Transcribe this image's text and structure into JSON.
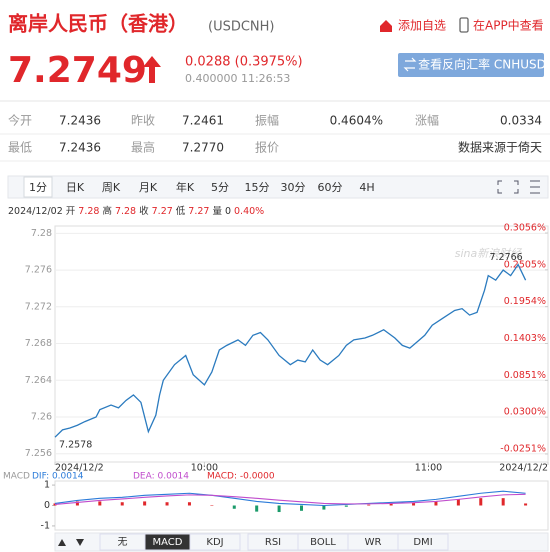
{
  "header": {
    "title": "离岸人民币（香港）",
    "code": "(USDCNH)",
    "add_watch": "添加自选",
    "app_view": "在APP中查看"
  },
  "quote": {
    "price": "7.2749",
    "change": "0.0288 (0.3975%)",
    "detail": "0.400000 11:26:53",
    "button": "查看反向汇率 CNHUSD"
  },
  "stats": [
    [
      {
        "label": "今开",
        "value": "7.2436"
      },
      {
        "label": "昨收",
        "value": "7.2461"
      },
      {
        "label": "振幅",
        "value": "0.4604%"
      },
      {
        "label": "涨幅",
        "value": "0.0334"
      }
    ],
    [
      {
        "label": "最低",
        "value": "7.2436"
      },
      {
        "label": "最高",
        "value": "7.2770"
      },
      {
        "label": "报价"
      },
      {
        "value": "数据来源于倚天"
      }
    ]
  ],
  "tabs": {
    "items": [
      "1分",
      "日K",
      "周K",
      "月K",
      "年K",
      "5分",
      "15分",
      "30分",
      "60分",
      "4H"
    ],
    "selected": 0
  },
  "info_line": [
    "2024/12/02",
    "开",
    "7.28",
    "高",
    "7.28",
    "收",
    "7.27",
    "低",
    "7.27",
    "量",
    "0",
    "0.40%"
  ],
  "indicators": {
    "items": [
      "无",
      "MACD",
      "KDJ",
      "RSI",
      "BOLL",
      "WR",
      "DMI"
    ],
    "selected": 1
  },
  "chart_data": [
    {
      "type": "line",
      "color": "#2b7bbf",
      "watermark": "sina新浪财经",
      "x": [
        0,
        2,
        4,
        6,
        8,
        11,
        12,
        15,
        17,
        19,
        21,
        23,
        25,
        27,
        28,
        29,
        32,
        35,
        37,
        40,
        42,
        44,
        46,
        49,
        51,
        53,
        55,
        57,
        60,
        63,
        65,
        67,
        69,
        71,
        73,
        76,
        78,
        80,
        83,
        85,
        88,
        91,
        93,
        95,
        97,
        99,
        101,
        104,
        107,
        109,
        111,
        113,
        115,
        116,
        118,
        120,
        122,
        124,
        126
      ],
      "values": [
        7.2578,
        7.2586,
        7.2588,
        7.2591,
        7.2595,
        7.26,
        7.2608,
        7.2613,
        7.261,
        7.2618,
        7.2624,
        7.2616,
        7.2584,
        7.2602,
        7.2624,
        7.264,
        7.2657,
        7.2667,
        7.2646,
        7.2635,
        7.2649,
        7.2673,
        7.2678,
        7.2684,
        7.2678,
        7.2689,
        7.2692,
        7.2684,
        7.2667,
        7.2657,
        7.2662,
        7.266,
        7.2673,
        7.2662,
        7.2657,
        7.2667,
        7.2678,
        7.2684,
        7.2686,
        7.2689,
        7.2695,
        7.2686,
        7.2678,
        7.2675,
        7.2682,
        7.2689,
        7.27,
        7.2708,
        7.2716,
        7.2718,
        7.2711,
        7.2714,
        7.2738,
        7.2754,
        7.2749,
        7.276,
        7.2754,
        7.2766,
        7.2749
      ],
      "annotations": [
        "7.2766",
        "7.2578"
      ],
      "xlim": [
        0,
        132
      ],
      "xticks": [
        {
          "value": 0,
          "label": "2024/12/2"
        },
        {
          "value": 40,
          "label": "10:00"
        },
        {
          "value": 100,
          "label": "11:00"
        },
        {
          "value": 132,
          "label": "2024/12/2"
        }
      ],
      "ylim": [
        7.2551,
        7.2808
      ],
      "yticks": [
        7.28,
        7.276,
        7.272,
        7.268,
        7.264,
        7.26,
        7.256
      ],
      "y2lim": [
        -0.0371,
        0.3161
      ],
      "y2ticks": [
        {
          "value": 0.3056,
          "label": "0.3056%"
        },
        {
          "value": 0.2505,
          "label": "0.2505%"
        },
        {
          "value": 0.1954,
          "label": "0.1954%"
        },
        {
          "value": 0.1403,
          "label": "0.1403%"
        },
        {
          "value": 0.0851,
          "label": "0.0851%"
        },
        {
          "value": 0.03,
          "label": "0.0300%"
        },
        {
          "value": -0.0251,
          "label": "-0.0251%"
        }
      ],
      "y2_color": "#e0272b",
      "grid": true
    },
    {
      "type": "macd",
      "label": "MACD",
      "x": [
        0,
        6,
        12,
        18,
        24,
        30,
        36,
        42,
        48,
        54,
        60,
        66,
        72,
        78,
        84,
        90,
        96,
        102,
        108,
        114,
        120,
        126
      ],
      "series": [
        {
          "name": "DIF: 0.0014",
          "color": "#2b7bd9",
          "values": [
            0.1,
            0.25,
            0.35,
            0.4,
            0.5,
            0.55,
            0.6,
            0.5,
            0.35,
            0.2,
            0.1,
            0.05,
            0.0,
            0.05,
            0.1,
            0.15,
            0.2,
            0.3,
            0.45,
            0.6,
            0.7,
            0.6
          ]
        },
        {
          "name": "DEA: 0.0014",
          "color": "#c04ccc",
          "values": [
            0.05,
            0.15,
            0.25,
            0.32,
            0.4,
            0.47,
            0.52,
            0.5,
            0.43,
            0.35,
            0.26,
            0.18,
            0.1,
            0.08,
            0.08,
            0.1,
            0.14,
            0.2,
            0.3,
            0.42,
            0.52,
            0.55
          ]
        }
      ],
      "histogram": {
        "name": "MACD: -0.0000",
        "color": "#e0272b",
        "down_color": "#1a9a6a",
        "values": [
          0.1,
          0.2,
          0.2,
          0.16,
          0.2,
          0.16,
          0.16,
          0.0,
          -0.16,
          -0.3,
          -0.32,
          -0.26,
          -0.2,
          -0.06,
          0.04,
          0.1,
          0.12,
          0.2,
          0.3,
          0.36,
          0.36,
          0.1
        ]
      },
      "xlim": [
        0,
        132
      ],
      "ylim": [
        -1.2,
        1.2
      ],
      "yticks": [
        1,
        0,
        -1
      ]
    }
  ]
}
